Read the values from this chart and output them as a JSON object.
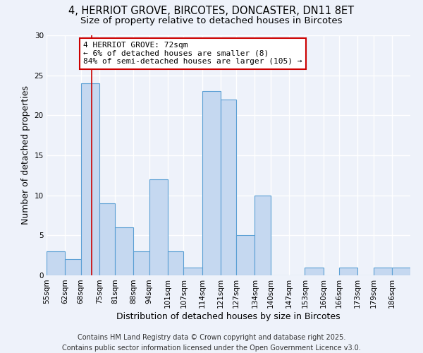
{
  "title": "4, HERRIOT GROVE, BIRCOTES, DONCASTER, DN11 8ET",
  "subtitle": "Size of property relative to detached houses in Bircotes",
  "xlabel": "Distribution of detached houses by size in Bircotes",
  "ylabel": "Number of detached properties",
  "footer_line1": "Contains HM Land Registry data © Crown copyright and database right 2025.",
  "footer_line2": "Contains public sector information licensed under the Open Government Licence v3.0.",
  "bar_edges": [
    55,
    62,
    68,
    75,
    81,
    88,
    94,
    101,
    107,
    114,
    121,
    127,
    134,
    140,
    147,
    153,
    160,
    166,
    173,
    179,
    186
  ],
  "bar_heights": [
    3,
    2,
    24,
    9,
    6,
    3,
    12,
    3,
    1,
    23,
    22,
    5,
    10,
    0,
    0,
    1,
    0,
    1,
    0,
    1,
    1
  ],
  "bar_color": "#c5d8f0",
  "bar_edge_color": "#5a9fd4",
  "vline_x": 72,
  "vline_color": "#cc0000",
  "annotation_text": "4 HERRIOT GROVE: 72sqm\n← 6% of detached houses are smaller (8)\n84% of semi-detached houses are larger (105) →",
  "annotation_box_color": "#ffffff",
  "annotation_box_edge_color": "#cc0000",
  "ylim": [
    0,
    30
  ],
  "yticks": [
    0,
    5,
    10,
    15,
    20,
    25,
    30
  ],
  "background_color": "#eef2fa",
  "grid_color": "#ffffff",
  "title_fontsize": 10.5,
  "subtitle_fontsize": 9.5,
  "axis_label_fontsize": 9,
  "tick_fontsize": 7.5,
  "annotation_fontsize": 8,
  "footer_fontsize": 7
}
